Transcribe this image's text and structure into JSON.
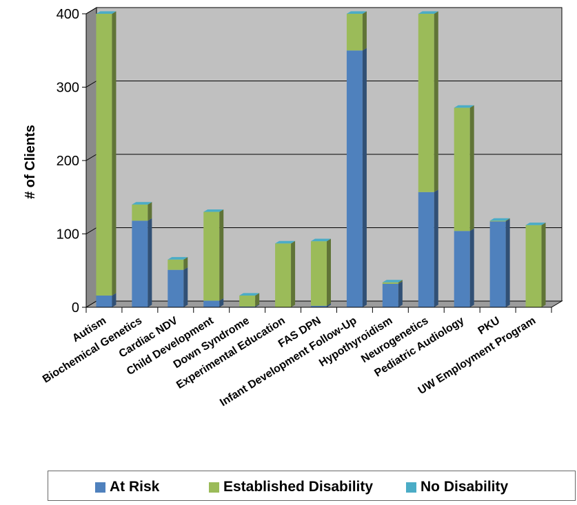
{
  "chart_data": {
    "type": "bar",
    "stacked": true,
    "three_d": true,
    "title": "",
    "xlabel": "",
    "ylabel": "# of Clients",
    "ylim": [
      0,
      400
    ],
    "yticks": [
      "0",
      "100",
      "200",
      "300",
      "400"
    ],
    "grid": true,
    "legend_position": "bottom",
    "categories": [
      "Autism",
      "Biochemical Genetics",
      "Cardiac NDV",
      "Child Development",
      "Down Syndrome",
      "Experimental Education",
      "FAS DPN",
      "Infant Development Follow-Up",
      "Hypothyroidism",
      "Neurogenetics",
      "Pediatric Audiology",
      "PKU",
      "UW Employment Program"
    ],
    "series": [
      {
        "name": "At Risk",
        "color": "#4f81bd",
        "values": [
          16,
          118,
          51,
          9,
          1,
          0,
          2,
          350,
          32,
          157,
          104,
          117,
          0
        ]
      },
      {
        "name": "Established Disability",
        "color": "#9bbb59",
        "values": [
          384,
          22,
          14,
          121,
          15,
          87,
          88,
          50,
          2,
          243,
          168,
          1,
          112
        ]
      },
      {
        "name": "No Disability",
        "color": "#4bacc6",
        "values": [
          0,
          0,
          0,
          0,
          0,
          0,
          0,
          0,
          0,
          0,
          0,
          0,
          0
        ]
      }
    ]
  }
}
